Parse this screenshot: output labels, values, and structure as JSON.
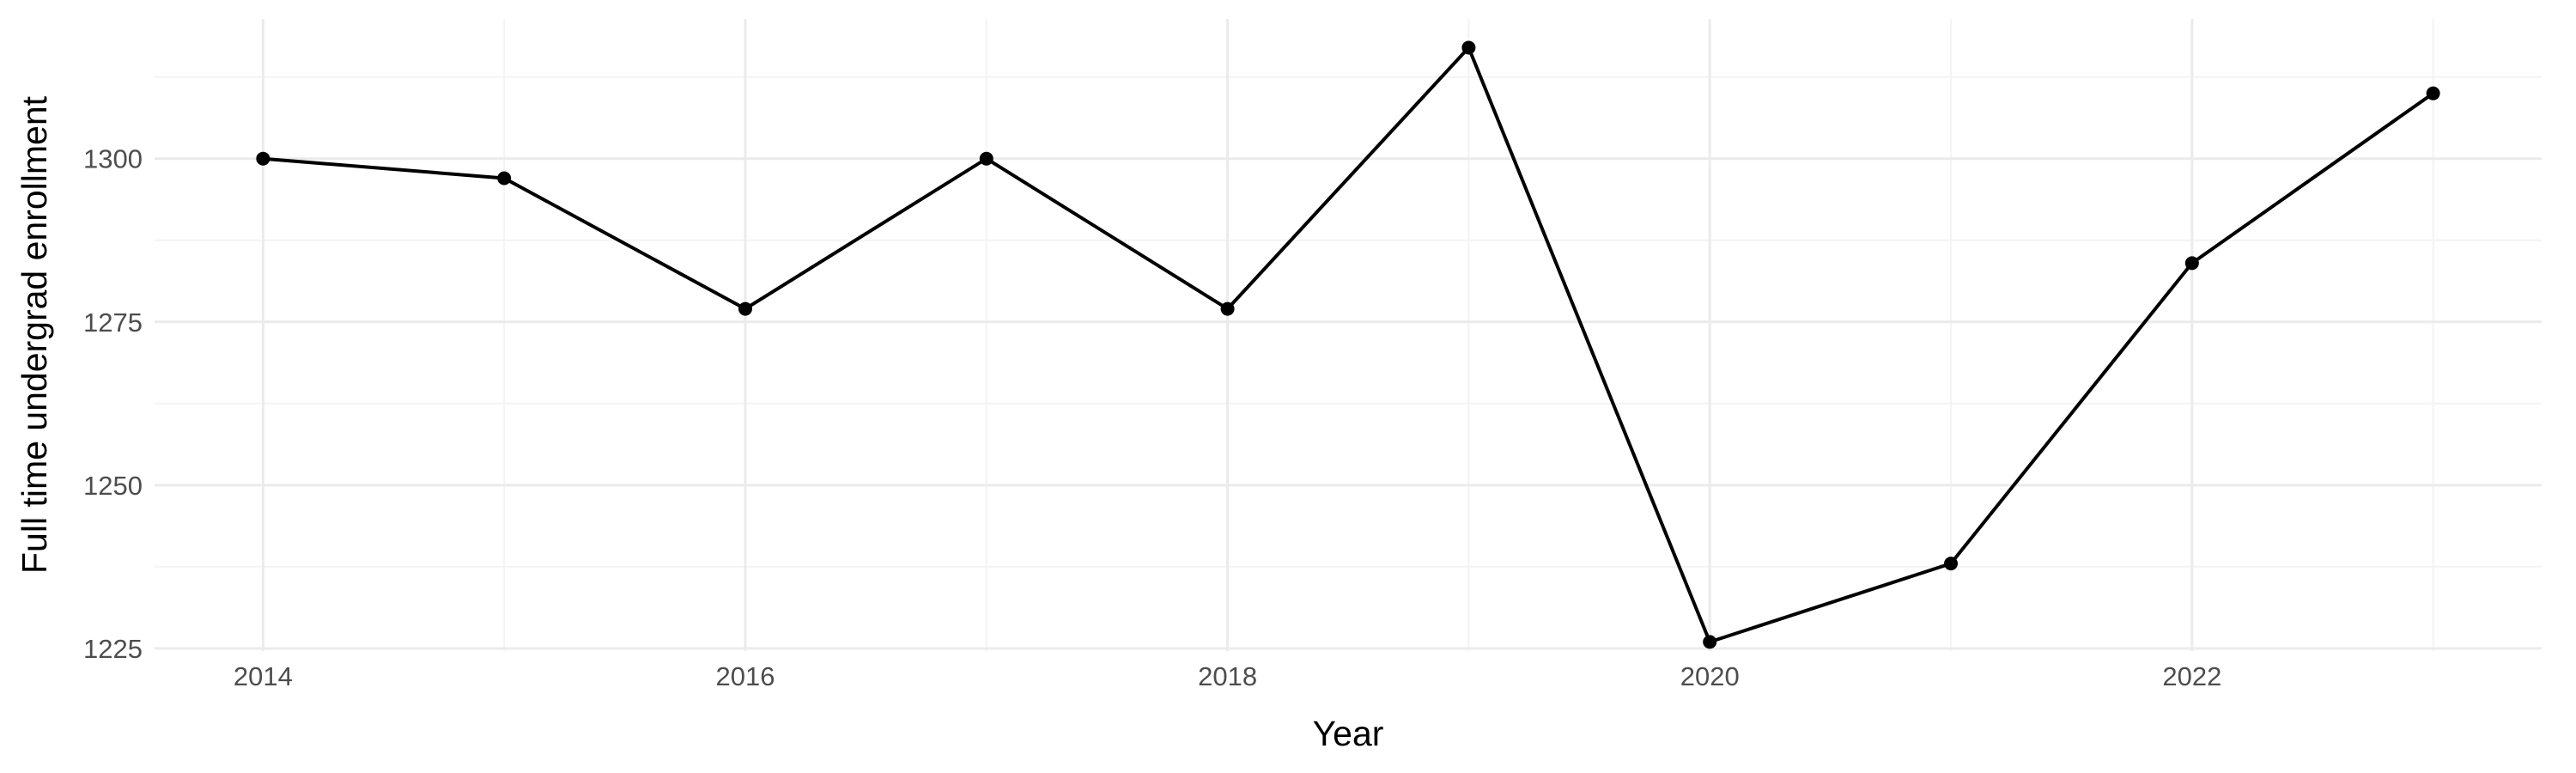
{
  "chart_data": {
    "type": "line",
    "title": "",
    "xlabel": "Year",
    "ylabel": "Full time undergrad enrollment",
    "x": [
      2014,
      2015,
      2016,
      2017,
      2018,
      2019,
      2020,
      2021,
      2022,
      2023
    ],
    "series": [
      {
        "values": [
          1300,
          1297,
          1277,
          1300,
          1277,
          1317,
          1226,
          1238,
          1284,
          1310
        ]
      }
    ],
    "xlim": [
      2013.55,
      2023.45
    ],
    "ylim": [
      1224.6,
      1321.4
    ],
    "x_ticks": [
      2014,
      2016,
      2018,
      2020,
      2022
    ],
    "y_ticks": [
      1225,
      1250,
      1275,
      1300
    ],
    "grid": true,
    "legend": "none",
    "colors": {
      "line": "#000000",
      "point": "#000000",
      "grid_major": "#ebebeb",
      "grid_minor": "#f4f4f4",
      "tick_text": "#4d4d4d"
    }
  }
}
